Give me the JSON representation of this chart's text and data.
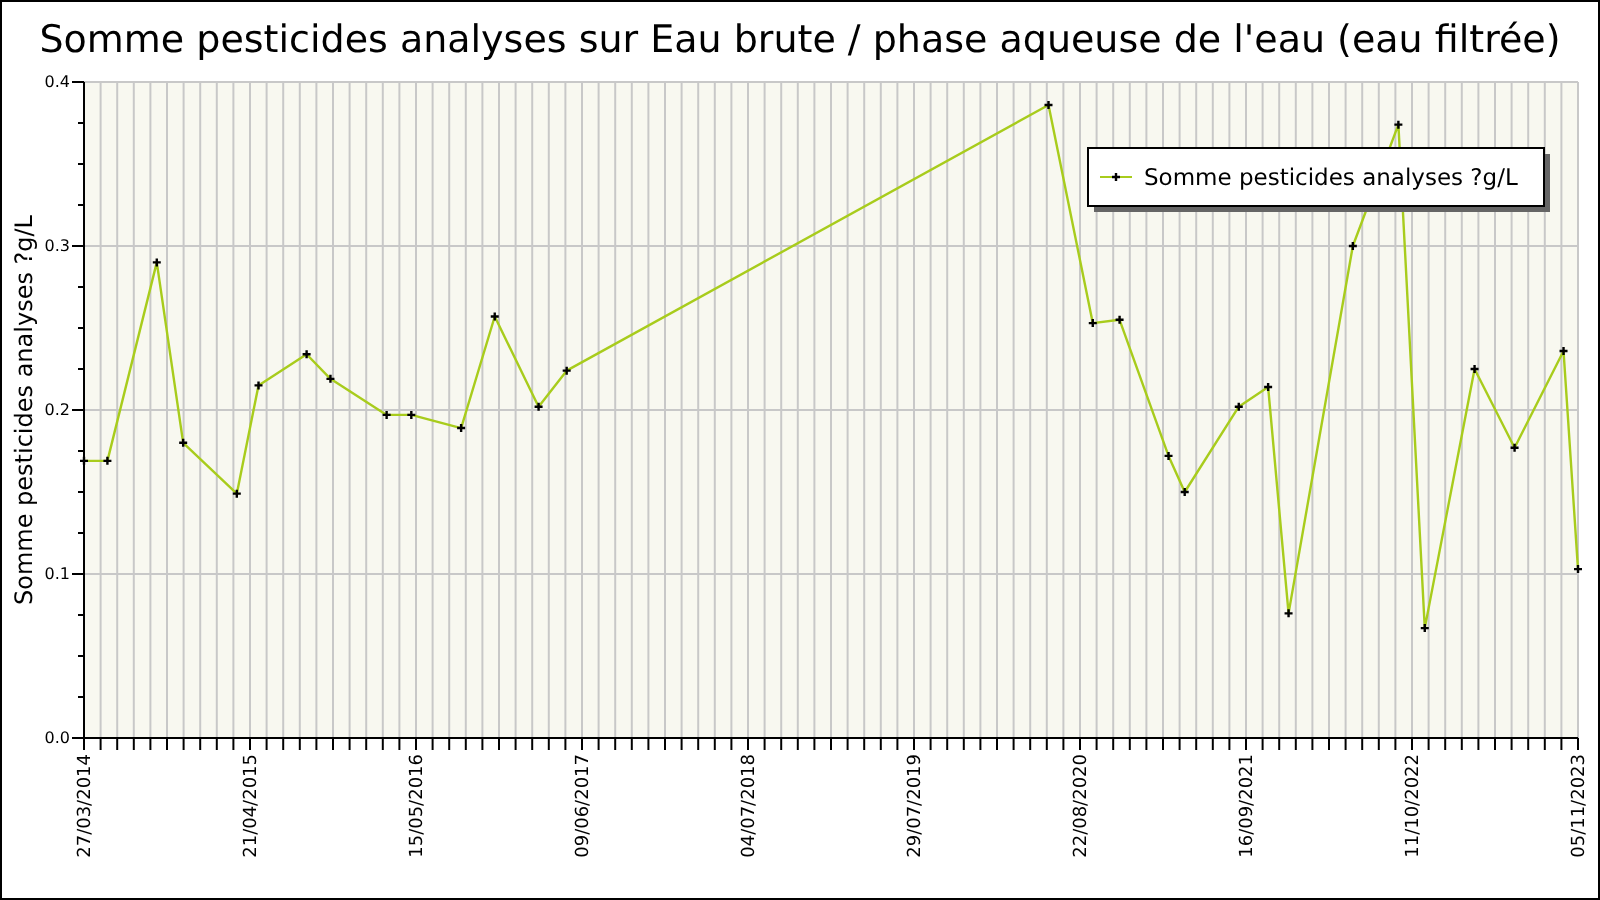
{
  "chart_data": {
    "type": "line",
    "title": "Somme pesticides analyses sur Eau brute / phase aqueuse de l'eau (eau filtrée)",
    "ylabel": "Somme pesticides analyses ?g/L",
    "x": [
      "2014-03-27",
      "2014-05-21",
      "2014-09-14",
      "2014-11-15",
      "2015-03-21",
      "2015-05-11",
      "2015-09-01",
      "2015-10-27",
      "2016-03-07",
      "2016-05-04",
      "2016-08-29",
      "2016-11-16",
      "2017-02-27",
      "2017-05-04",
      "2020-06-09",
      "2020-09-21",
      "2020-11-23",
      "2021-03-18",
      "2021-04-25",
      "2021-08-30",
      "2021-11-07",
      "2021-12-25",
      "2022-05-25",
      "2022-09-09",
      "2022-11-10",
      "2023-03-07",
      "2023-06-09",
      "2023-10-02",
      "2023-11-05"
    ],
    "series": [
      {
        "name": "Somme pesticides analyses ?g/L",
        "color": "#a8cc1c",
        "values": [
          0.169,
          0.169,
          0.29,
          0.18,
          0.149,
          0.215,
          0.234,
          0.219,
          0.197,
          0.197,
          0.189,
          0.257,
          0.202,
          0.224,
          0.386,
          0.253,
          0.255,
          0.172,
          0.15,
          0.202,
          0.214,
          0.076,
          0.3,
          0.374,
          0.067,
          0.225,
          0.177,
          0.236,
          0.103
        ]
      }
    ],
    "xlim": [
      "2014-03-27",
      "2023-11-05"
    ],
    "xticks": [
      {
        "value": "2014-03-27",
        "label": "27/03/2014"
      },
      {
        "value": "2015-04-21",
        "label": "21/04/2015"
      },
      {
        "value": "2016-05-15",
        "label": "15/05/2016"
      },
      {
        "value": "2017-06-09",
        "label": "09/06/2017"
      },
      {
        "value": "2018-07-04",
        "label": "04/07/2018"
      },
      {
        "value": "2019-07-29",
        "label": "29/07/2019"
      },
      {
        "value": "2020-08-22",
        "label": "22/08/2020"
      },
      {
        "value": "2021-09-16",
        "label": "16/09/2021"
      },
      {
        "value": "2022-10-11",
        "label": "11/10/2022"
      },
      {
        "value": "2023-11-05",
        "label": "05/11/2023"
      }
    ],
    "ylim": [
      0,
      0.4
    ],
    "yticks": [
      {
        "value": 0,
        "label": "0.0"
      },
      {
        "value": 0.025,
        "label": null
      },
      {
        "value": 0.05,
        "label": null
      },
      {
        "value": 0.075,
        "label": null
      },
      0.1,
      {
        "value": 0.125,
        "label": null
      },
      {
        "value": 0.15,
        "label": null
      },
      {
        "value": 0.175,
        "label": null
      },
      0.2,
      {
        "value": 0.225,
        "label": null
      },
      {
        "value": 0.25,
        "label": null
      },
      {
        "value": 0.275,
        "label": null
      },
      0.3,
      {
        "value": 0.325,
        "label": null
      },
      {
        "value": 0.35,
        "label": null
      },
      {
        "value": 0.375,
        "label": null
      },
      0.4
    ],
    "grid": true,
    "legend": "top right",
    "marker": "cross",
    "line_style": "solid"
  }
}
